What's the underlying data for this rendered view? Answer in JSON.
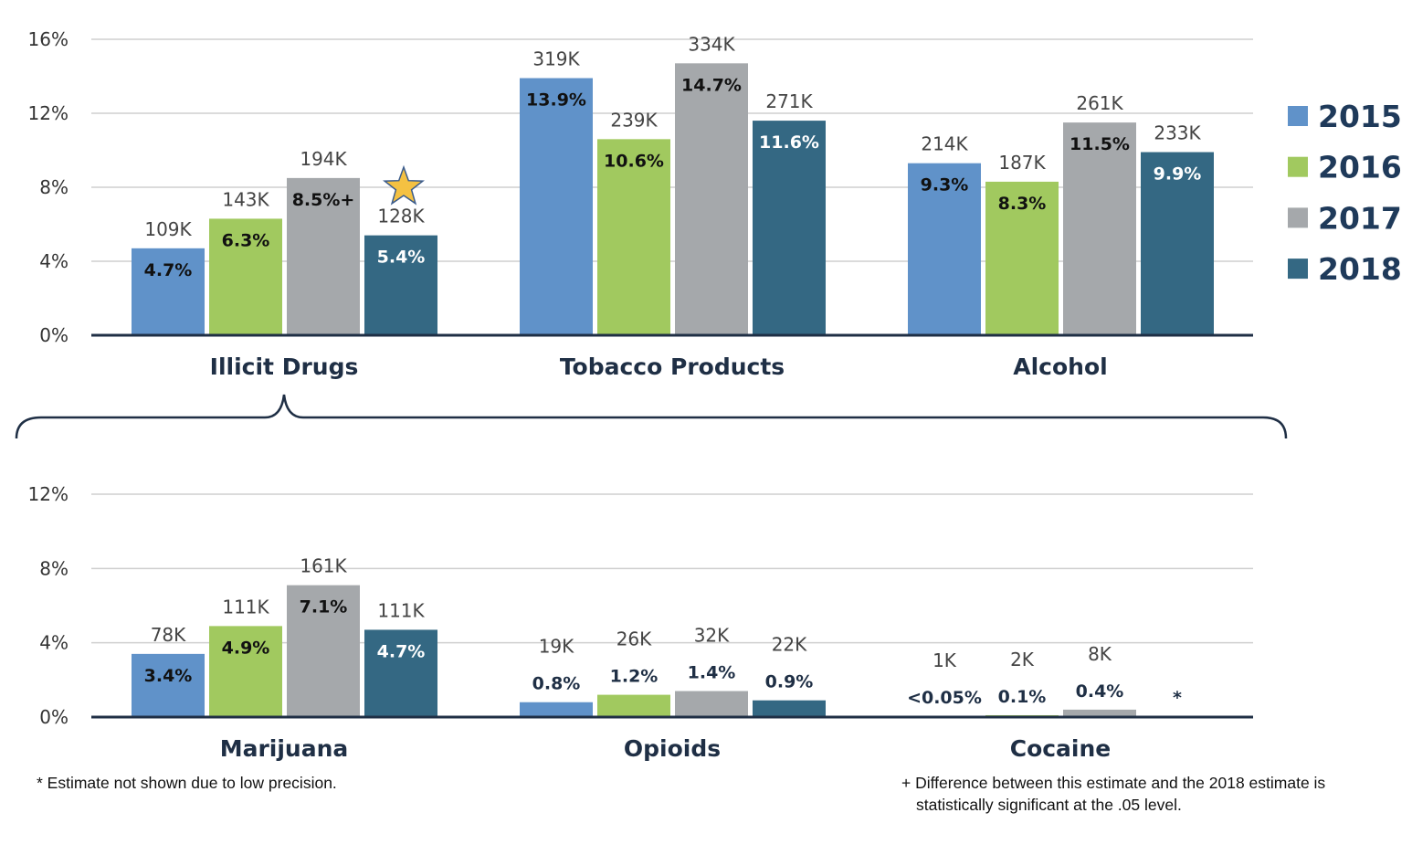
{
  "chart_data": [
    {
      "type": "bar",
      "ylim": [
        0,
        16
      ],
      "yticks": [
        "0%",
        "4%",
        "8%",
        "12%",
        "16%"
      ],
      "grid": true,
      "legend_position": "right",
      "categories": [
        "Illicit Drugs",
        "Tobacco Products",
        "Alcohol"
      ],
      "series": [
        {
          "name": "2015",
          "color": "#6092c9",
          "values": [
            4.7,
            13.9,
            9.3
          ],
          "pct_labels": [
            "4.7%",
            "13.9%",
            "9.3%"
          ],
          "count_labels": [
            "109K",
            "319K",
            "214K"
          ]
        },
        {
          "name": "2016",
          "color": "#a1c95f",
          "values": [
            6.3,
            10.6,
            8.3
          ],
          "pct_labels": [
            "6.3%",
            "10.6%",
            "8.3%"
          ],
          "count_labels": [
            "143K",
            "239K",
            "187K"
          ]
        },
        {
          "name": "2017",
          "color": "#a5a8ab",
          "values": [
            8.5,
            14.7,
            11.5
          ],
          "pct_labels": [
            "8.5%+",
            "14.7%",
            "11.5%"
          ],
          "count_labels": [
            "194K",
            "334K",
            "261K"
          ]
        },
        {
          "name": "2018",
          "color": "#346883",
          "values": [
            5.4,
            11.6,
            9.9
          ],
          "pct_labels": [
            "5.4%",
            "11.6%",
            "9.9%"
          ],
          "count_labels": [
            "128K",
            "271K",
            "233K"
          ]
        }
      ],
      "annotations": [
        {
          "type": "star-icon",
          "category": "Illicit Drugs",
          "series": "2018",
          "color": "#f4c142"
        }
      ]
    },
    {
      "type": "bar",
      "ylim": [
        0,
        12
      ],
      "yticks": [
        "0%",
        "4%",
        "8%",
        "12%"
      ],
      "grid": true,
      "categories": [
        "Marijuana",
        "Opioids",
        "Cocaine"
      ],
      "series": [
        {
          "name": "2015",
          "color": "#6092c9",
          "values": [
            3.4,
            0.8,
            0.0
          ],
          "pct_labels": [
            "3.4%",
            "0.8%",
            "<0.05%"
          ],
          "count_labels": [
            "78K",
            "19K",
            "1K"
          ]
        },
        {
          "name": "2016",
          "color": "#a1c95f",
          "values": [
            4.9,
            1.2,
            0.1
          ],
          "pct_labels": [
            "4.9%",
            "1.2%",
            "0.1%"
          ],
          "count_labels": [
            "111K",
            "26K",
            "2K"
          ]
        },
        {
          "name": "2017",
          "color": "#a5a8ab",
          "values": [
            7.1,
            1.4,
            0.4
          ],
          "pct_labels": [
            "7.1%",
            "1.4%",
            "0.4%"
          ],
          "count_labels": [
            "161K",
            "32K",
            "8K"
          ]
        },
        {
          "name": "2018",
          "color": "#346883",
          "values": [
            4.7,
            0.9,
            null
          ],
          "pct_labels": [
            "4.7%",
            "0.9%",
            "*"
          ],
          "count_labels": [
            "111K",
            "22K",
            ""
          ]
        }
      ]
    }
  ],
  "footnotes": {
    "left": "* Estimate not shown due to low precision.",
    "right_line1": "+ Difference between this estimate and the 2018 estimate is",
    "right_line2": "statistically significant at the .05 level."
  }
}
